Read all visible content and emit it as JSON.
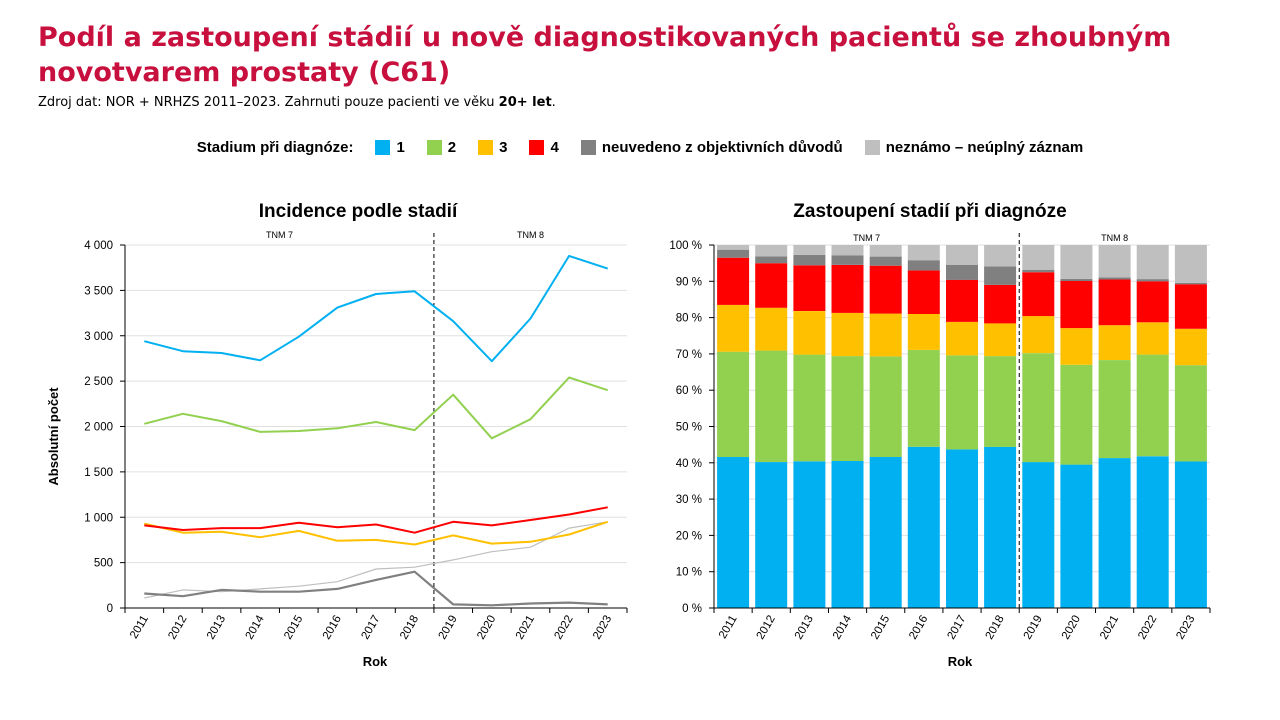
{
  "header": {
    "title": "Podíl a zastoupení stádií u nově diagnostikovaných pacientů se zhoubným novotvarem prostaty (C61)",
    "subtitle_prefix": "Zdroj dat: NOR + NRHZS 2011–2023. Zahrnuti pouze pacienti ve věku ",
    "subtitle_bold": "20+ let",
    "subtitle_suffix": "."
  },
  "legend": {
    "title": "Stadium při diagnóze:",
    "items": [
      {
        "label": "1",
        "color": "#00b0f0"
      },
      {
        "label": "2",
        "color": "#92d050"
      },
      {
        "label": "3",
        "color": "#ffc000"
      },
      {
        "label": "4",
        "color": "#ff0000"
      },
      {
        "label": "neuvedeno z objektivních důvodů",
        "color": "#808080"
      },
      {
        "label": "neznámo – neúplný záznam",
        "color": "#bfbfbf"
      }
    ]
  },
  "chart_data": [
    {
      "type": "line",
      "title": "Incidence podle stadií",
      "xlabel": "Rok",
      "ylabel": "Absolutní počet",
      "ylim": [
        0,
        4000
      ],
      "yticks": [
        "0",
        "500",
        "1 000",
        "1 500",
        "2 000",
        "2 500",
        "3 000",
        "3 500",
        "4 000"
      ],
      "grid": true,
      "annotations": [
        "TNM 7",
        "TNM 8"
      ],
      "divider_after": "2018",
      "x": [
        "2011",
        "2012",
        "2013",
        "2014",
        "2015",
        "2016",
        "2017",
        "2018",
        "2019",
        "2020",
        "2021",
        "2022",
        "2023"
      ],
      "series": [
        {
          "name": "1",
          "color": "#00b0f0",
          "values": [
            2940,
            2830,
            2810,
            2730,
            2990,
            3310,
            3460,
            3490,
            3160,
            2720,
            3190,
            3880,
            3740
          ]
        },
        {
          "name": "2",
          "color": "#92d050",
          "values": [
            2030,
            2140,
            2060,
            1940,
            1950,
            1980,
            2050,
            1960,
            2350,
            1870,
            2080,
            2540,
            2400
          ]
        },
        {
          "name": "3",
          "color": "#ffc000",
          "values": [
            930,
            830,
            840,
            780,
            850,
            740,
            750,
            700,
            800,
            710,
            730,
            810,
            950
          ]
        },
        {
          "name": "4",
          "color": "#ff0000",
          "values": [
            910,
            860,
            880,
            880,
            940,
            890,
            920,
            830,
            950,
            910,
            970,
            1030,
            1110
          ]
        },
        {
          "name": "neuvedeno z objektivních důvodů",
          "color": "#808080",
          "values": [
            160,
            130,
            200,
            180,
            180,
            210,
            310,
            400,
            40,
            30,
            50,
            60,
            40
          ]
        },
        {
          "name": "neznámo – neúplný záznam",
          "color": "#bfbfbf",
          "values": [
            110,
            200,
            180,
            210,
            240,
            290,
            430,
            450,
            530,
            620,
            670,
            880,
            950
          ]
        }
      ]
    },
    {
      "type": "bar",
      "stacked": true,
      "title": "Zastoupení stadií při diagnóze",
      "xlabel": "Rok",
      "ylabel": "",
      "ylim": [
        0,
        100
      ],
      "yticks": [
        "0 %",
        "10 %",
        "20 %",
        "30 %",
        "40 %",
        "50 %",
        "60 %",
        "70 %",
        "80 %",
        "90 %",
        "100 %"
      ],
      "grid": true,
      "annotations": [
        "TNM 7",
        "TNM 8"
      ],
      "divider_after": "2018",
      "categories": [
        "2011",
        "2012",
        "2013",
        "2014",
        "2015",
        "2016",
        "2017",
        "2018",
        "2019",
        "2020",
        "2021",
        "2022",
        "2023"
      ],
      "series": [
        {
          "name": "1",
          "color": "#00b0f0",
          "values": [
            41.6,
            40.2,
            40.4,
            40.5,
            41.6,
            44.4,
            43.7,
            44.4,
            40.2,
            39.5,
            41.3,
            41.8,
            40.4
          ]
        },
        {
          "name": "2",
          "color": "#92d050",
          "values": [
            29.0,
            30.7,
            29.4,
            28.9,
            27.7,
            26.7,
            25.9,
            25.0,
            30.0,
            27.5,
            27.0,
            28.0,
            26.5
          ]
        },
        {
          "name": "3",
          "color": "#ffc000",
          "values": [
            12.9,
            11.8,
            12.0,
            11.9,
            11.8,
            9.9,
            9.2,
            9.0,
            10.2,
            10.1,
            9.6,
            8.9,
            10.0
          ]
        },
        {
          "name": "4",
          "color": "#ff0000",
          "values": [
            13.0,
            12.3,
            12.6,
            13.2,
            13.2,
            12.0,
            11.6,
            10.6,
            12.1,
            13.0,
            12.6,
            11.3,
            12.3
          ]
        },
        {
          "name": "neuvedeno z objektivních důvodů",
          "color": "#808080",
          "values": [
            2.2,
            1.9,
            2.9,
            2.6,
            2.5,
            2.8,
            4.1,
            5.1,
            0.6,
            0.6,
            0.6,
            0.6,
            0.4
          ]
        },
        {
          "name": "neznámo – neúplný záznam",
          "color": "#bfbfbf",
          "values": [
            1.3,
            3.1,
            2.7,
            2.9,
            3.2,
            4.2,
            5.5,
            5.9,
            6.9,
            9.3,
            8.9,
            9.4,
            10.4
          ]
        }
      ]
    }
  ]
}
